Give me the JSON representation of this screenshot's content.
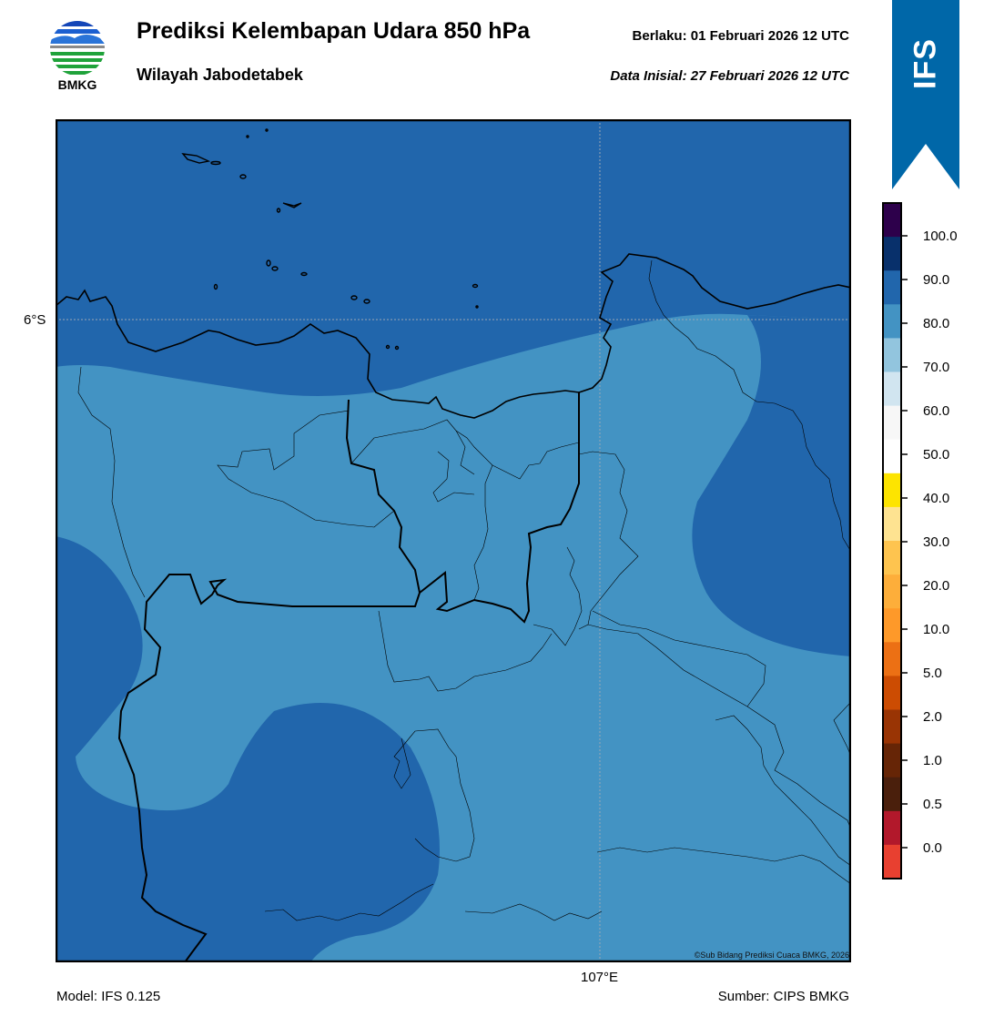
{
  "header": {
    "logo_text": "BMKG",
    "title": "Prediksi Kelembapan Udara 850 hPa",
    "subtitle": "Wilayah Jabodetabek",
    "valid": "Berlaku:  01 Februari 2026 12 UTC",
    "init": "Data Inisial:  27 Februari 2026 12 UTC",
    "badge": "IFS"
  },
  "map": {
    "lat_label": "6°S",
    "lon_label": "107°E",
    "credit": "©Sub Bidang Prediksi Cuaca BMKG, 2026",
    "colors": {
      "humid_80_90": "#2166ac",
      "humid_70_80": "#4393c3",
      "border": "#000000"
    }
  },
  "footer": {
    "model": "Model: IFS 0.125",
    "source": "Sumber: CIPS BMKG"
  },
  "colorbar": {
    "ticks": [
      "100.0",
      "90.0",
      "80.0",
      "70.0",
      "60.0",
      "50.0",
      "40.0",
      "30.0",
      "20.0",
      "10.0",
      "5.0",
      "2.0",
      "1.0",
      "0.5",
      "0.0"
    ],
    "bins_top_to_bottom": [
      "#2d004b",
      "#08306b",
      "#2166ac",
      "#4393c3",
      "#92c5de",
      "#d1e5f0",
      "#f7f7f7",
      "#ffffff",
      "#fde400",
      "#fee391",
      "#fec44f",
      "#fdae3a",
      "#fe9929",
      "#ec7014",
      "#cc4c02",
      "#993404",
      "#662506",
      "#4a1f0c",
      "#b2182b",
      "#e84030"
    ]
  }
}
